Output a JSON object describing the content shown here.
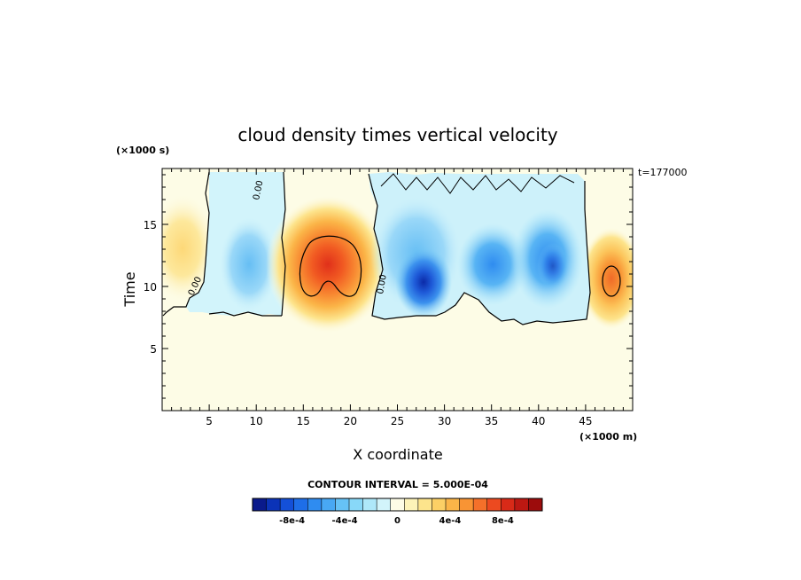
{
  "chart_data": {
    "type": "heatmap",
    "title": "cloud density times vertical velocity",
    "xlabel": "X coordinate",
    "ylabel": "Time",
    "x_multiplier": "(×1000 m)",
    "y_multiplier": "(×1000 s)",
    "timestamp_label": "t=177000",
    "xlim": [
      0,
      50
    ],
    "ylim": [
      0,
      19.5
    ],
    "x_ticks": [
      5,
      10,
      15,
      20,
      25,
      30,
      35,
      40,
      45
    ],
    "y_ticks": [
      5,
      10,
      15
    ],
    "zero_contour_labels": [
      "0.00",
      "0.00",
      "0.00"
    ],
    "contour_interval_text": "CONTOUR INTERVAL = 5.000E-04",
    "colorbar": {
      "levels": [
        -0.0011,
        -0.0001,
        0.0001,
        0.0011
      ],
      "tick_labels": [
        "-8e-4",
        "-4e-4",
        "0",
        "4e-4",
        "8e-4"
      ],
      "tick_values": [
        -0.0008,
        -0.0004,
        0.0,
        0.0004,
        0.0008
      ],
      "colors": [
        "#0a1a8c",
        "#0b33b8",
        "#1450d8",
        "#1e6ee8",
        "#2f8cf0",
        "#48a8f4",
        "#66c2f6",
        "#88d8f8",
        "#aee8fa",
        "#d2f4fb",
        "#fdfce6",
        "#fdf3b8",
        "#fde48c",
        "#fcd065",
        "#fbb548",
        "#f89434",
        "#f4702a",
        "#ec4a20",
        "#d82a18",
        "#bc1812",
        "#9c0c0c"
      ]
    },
    "features": [
      {
        "type": "positive_max",
        "x": 17.5,
        "y": 11.8,
        "value": 0.0008
      },
      {
        "type": "positive_max",
        "x": 47.8,
        "y": 10.8,
        "value": 0.0006
      },
      {
        "type": "positive_weak",
        "x": 2.5,
        "y": 14.5,
        "value": 0.0002
      },
      {
        "type": "negative_min",
        "x": 27.5,
        "y": 10.5,
        "value": -0.0008
      },
      {
        "type": "negative_min",
        "x": 41.0,
        "y": 12.0,
        "value": -0.0005
      },
      {
        "type": "negative_min",
        "x": 34.0,
        "y": 12.0,
        "value": -0.0004
      },
      {
        "type": "negative_weak",
        "x": 10.0,
        "y": 12.0,
        "value": -0.0003
      }
    ]
  }
}
